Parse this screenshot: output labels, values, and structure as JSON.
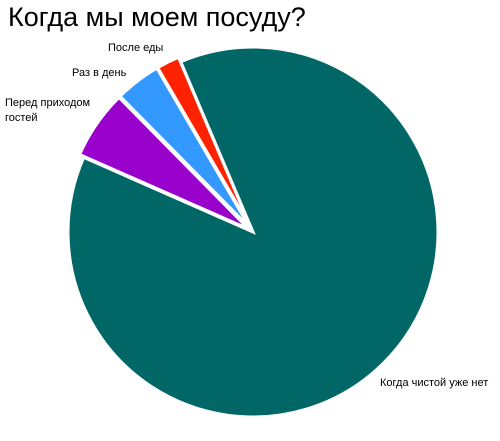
{
  "chart_data": {
    "type": "pie",
    "title": "Когда мы моем посуду?",
    "categories": [
      "Когда чистой уже нет",
      "Перед приходом гостей",
      "Раз в день",
      "После еды"
    ],
    "values": [
      88,
      6,
      4,
      2
    ],
    "colors": [
      "#006666",
      "#9900cc",
      "#3399ff",
      "#ff2200"
    ]
  }
}
